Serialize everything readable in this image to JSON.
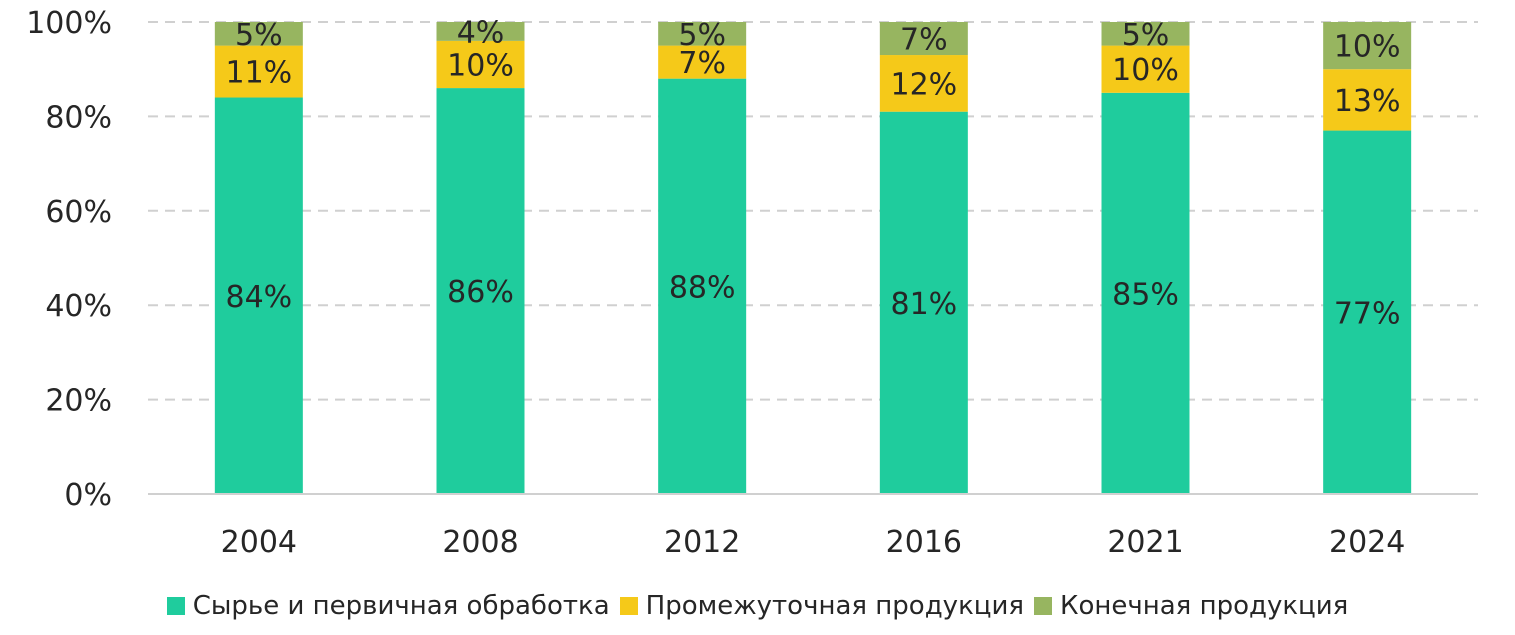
{
  "chart_data": {
    "type": "bar",
    "stacked": true,
    "categories": [
      "2004",
      "2008",
      "2012",
      "2016",
      "2021",
      "2024"
    ],
    "series": [
      {
        "name": "Сырье и первичная обработка",
        "color": "#1fcc9d",
        "values": [
          84,
          86,
          88,
          81,
          85,
          77
        ],
        "labels": [
          "84%",
          "86%",
          "88%",
          "81%",
          "85%",
          "77%"
        ]
      },
      {
        "name": "Промежуточная продукция",
        "color": "#f5c919",
        "values": [
          11,
          10,
          7,
          12,
          10,
          13
        ],
        "labels": [
          "11%",
          "10%",
          "7%",
          "12%",
          "10%",
          "13%"
        ]
      },
      {
        "name": "Конечная продукция",
        "color": "#97b560",
        "values": [
          5,
          4,
          5,
          7,
          5,
          10
        ],
        "labels": [
          "5%",
          "4%",
          "5%",
          "7%",
          "5%",
          "10%"
        ]
      }
    ],
    "ylim": [
      0,
      100
    ],
    "yticks": [
      0,
      20,
      40,
      60,
      80,
      100
    ],
    "ytick_labels": [
      "0%",
      "20%",
      "40%",
      "60%",
      "80%",
      "100%"
    ],
    "grid": true,
    "legend_position": "bottom",
    "title": "",
    "xlabel": "",
    "ylabel": ""
  }
}
